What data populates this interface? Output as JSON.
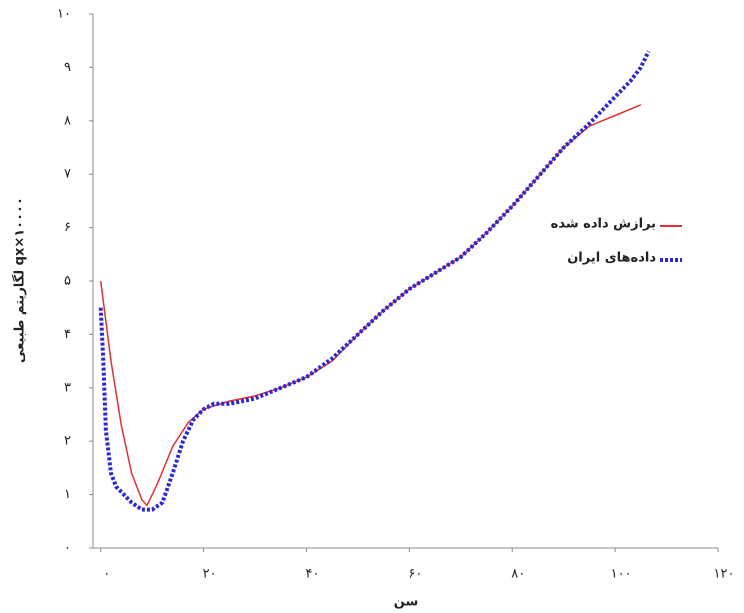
{
  "chart_data": {
    "type": "line",
    "xlabel": "سن",
    "ylabel": "لگاریتم طبیعی qx×۱۰۰۰۰",
    "xlim": [
      -1.5,
      120
    ],
    "ylim": [
      0,
      10
    ],
    "xticks": [
      {
        "value": 0,
        "label": "۰"
      },
      {
        "value": 20,
        "label": "۲۰"
      },
      {
        "value": 40,
        "label": "۴۰"
      },
      {
        "value": 60,
        "label": "۶۰"
      },
      {
        "value": 80,
        "label": "۸۰"
      },
      {
        "value": 100,
        "label": "۱۰۰"
      },
      {
        "value": 120,
        "label": "۱۲۰"
      }
    ],
    "yticks": [
      {
        "value": 0,
        "label": "۰"
      },
      {
        "value": 1,
        "label": "۱"
      },
      {
        "value": 2,
        "label": "۲"
      },
      {
        "value": 3,
        "label": "۳"
      },
      {
        "value": 4,
        "label": "۴"
      },
      {
        "value": 5,
        "label": "۵"
      },
      {
        "value": 6,
        "label": "۶"
      },
      {
        "value": 7,
        "label": "۷"
      },
      {
        "value": 8,
        "label": "۸"
      },
      {
        "value": 9,
        "label": "۹"
      },
      {
        "value": 10,
        "label": "۱۰"
      }
    ],
    "series": [
      {
        "name": "برازش داده شده",
        "color": "#e03030",
        "style": "solid",
        "x": [
          0,
          2,
          4,
          6,
          8,
          9,
          11,
          14,
          17,
          20,
          25,
          30,
          35,
          40,
          45,
          50,
          55,
          60,
          65,
          70,
          75,
          80,
          85,
          90,
          95,
          100,
          105
        ],
        "values": [
          5.0,
          3.5,
          2.3,
          1.4,
          0.9,
          0.8,
          1.2,
          1.9,
          2.35,
          2.6,
          2.75,
          2.85,
          3.0,
          3.2,
          3.5,
          4.0,
          4.45,
          4.85,
          5.15,
          5.45,
          5.9,
          6.4,
          6.95,
          7.5,
          7.9,
          8.1,
          8.3
        ]
      },
      {
        "name": "داده‌های ایران",
        "color": "#2a2ad0",
        "style": "dotted",
        "x": [
          0,
          0.5,
          1,
          2,
          3,
          4,
          6,
          8,
          10,
          12,
          14,
          16,
          18,
          20,
          22,
          25,
          30,
          35,
          40,
          45,
          50,
          55,
          60,
          65,
          70,
          75,
          80,
          85,
          90,
          95,
          100,
          103,
          105,
          106.5
        ],
        "values": [
          4.5,
          3.5,
          2.2,
          1.4,
          1.15,
          1.05,
          0.85,
          0.72,
          0.72,
          0.85,
          1.4,
          2.0,
          2.4,
          2.6,
          2.7,
          2.7,
          2.8,
          3.0,
          3.2,
          3.55,
          4.0,
          4.45,
          4.85,
          5.15,
          5.45,
          5.9,
          6.4,
          6.95,
          7.5,
          7.95,
          8.45,
          8.75,
          9.0,
          9.3
        ]
      }
    ]
  }
}
